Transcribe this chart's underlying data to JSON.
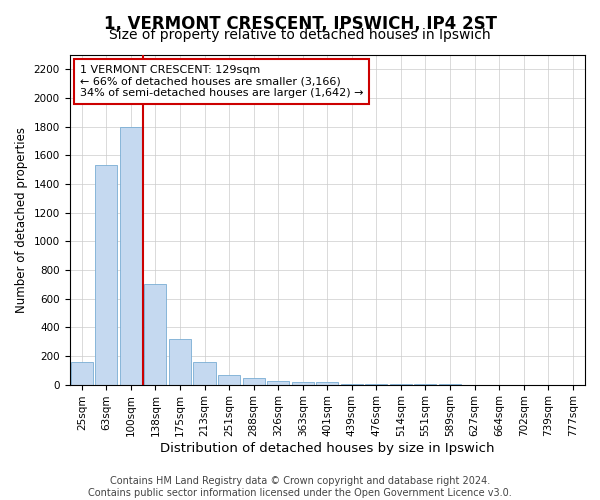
{
  "title": "1, VERMONT CRESCENT, IPSWICH, IP4 2ST",
  "subtitle": "Size of property relative to detached houses in Ipswich",
  "xlabel": "Distribution of detached houses by size in Ipswich",
  "ylabel": "Number of detached properties",
  "categories": [
    "25sqm",
    "63sqm",
    "100sqm",
    "138sqm",
    "175sqm",
    "213sqm",
    "251sqm",
    "288sqm",
    "326sqm",
    "363sqm",
    "401sqm",
    "439sqm",
    "476sqm",
    "514sqm",
    "551sqm",
    "589sqm",
    "627sqm",
    "664sqm",
    "702sqm",
    "739sqm",
    "777sqm"
  ],
  "values": [
    155,
    1530,
    1800,
    700,
    315,
    155,
    70,
    45,
    25,
    20,
    15,
    5,
    5,
    2,
    2,
    2,
    0,
    0,
    0,
    0,
    0
  ],
  "bar_color": "#c5d9f0",
  "bar_edge_color": "#7aadd4",
  "vline_color": "#cc0000",
  "annotation_line1": "1 VERMONT CRESCENT: 129sqm",
  "annotation_line2": "← 66% of detached houses are smaller (3,166)",
  "annotation_line3": "34% of semi-detached houses are larger (1,642) →",
  "annotation_box_color": "#ffffff",
  "annotation_box_edge": "#cc0000",
  "ylim": [
    0,
    2300
  ],
  "yticks": [
    0,
    200,
    400,
    600,
    800,
    1000,
    1200,
    1400,
    1600,
    1800,
    2000,
    2200
  ],
  "grid_color": "#cccccc",
  "background_color": "#ffffff",
  "footer_line1": "Contains HM Land Registry data © Crown copyright and database right 2024.",
  "footer_line2": "Contains public sector information licensed under the Open Government Licence v3.0.",
  "title_fontsize": 12,
  "subtitle_fontsize": 10,
  "xlabel_fontsize": 9.5,
  "ylabel_fontsize": 8.5,
  "tick_fontsize": 7.5,
  "annot_fontsize": 8,
  "footer_fontsize": 7
}
